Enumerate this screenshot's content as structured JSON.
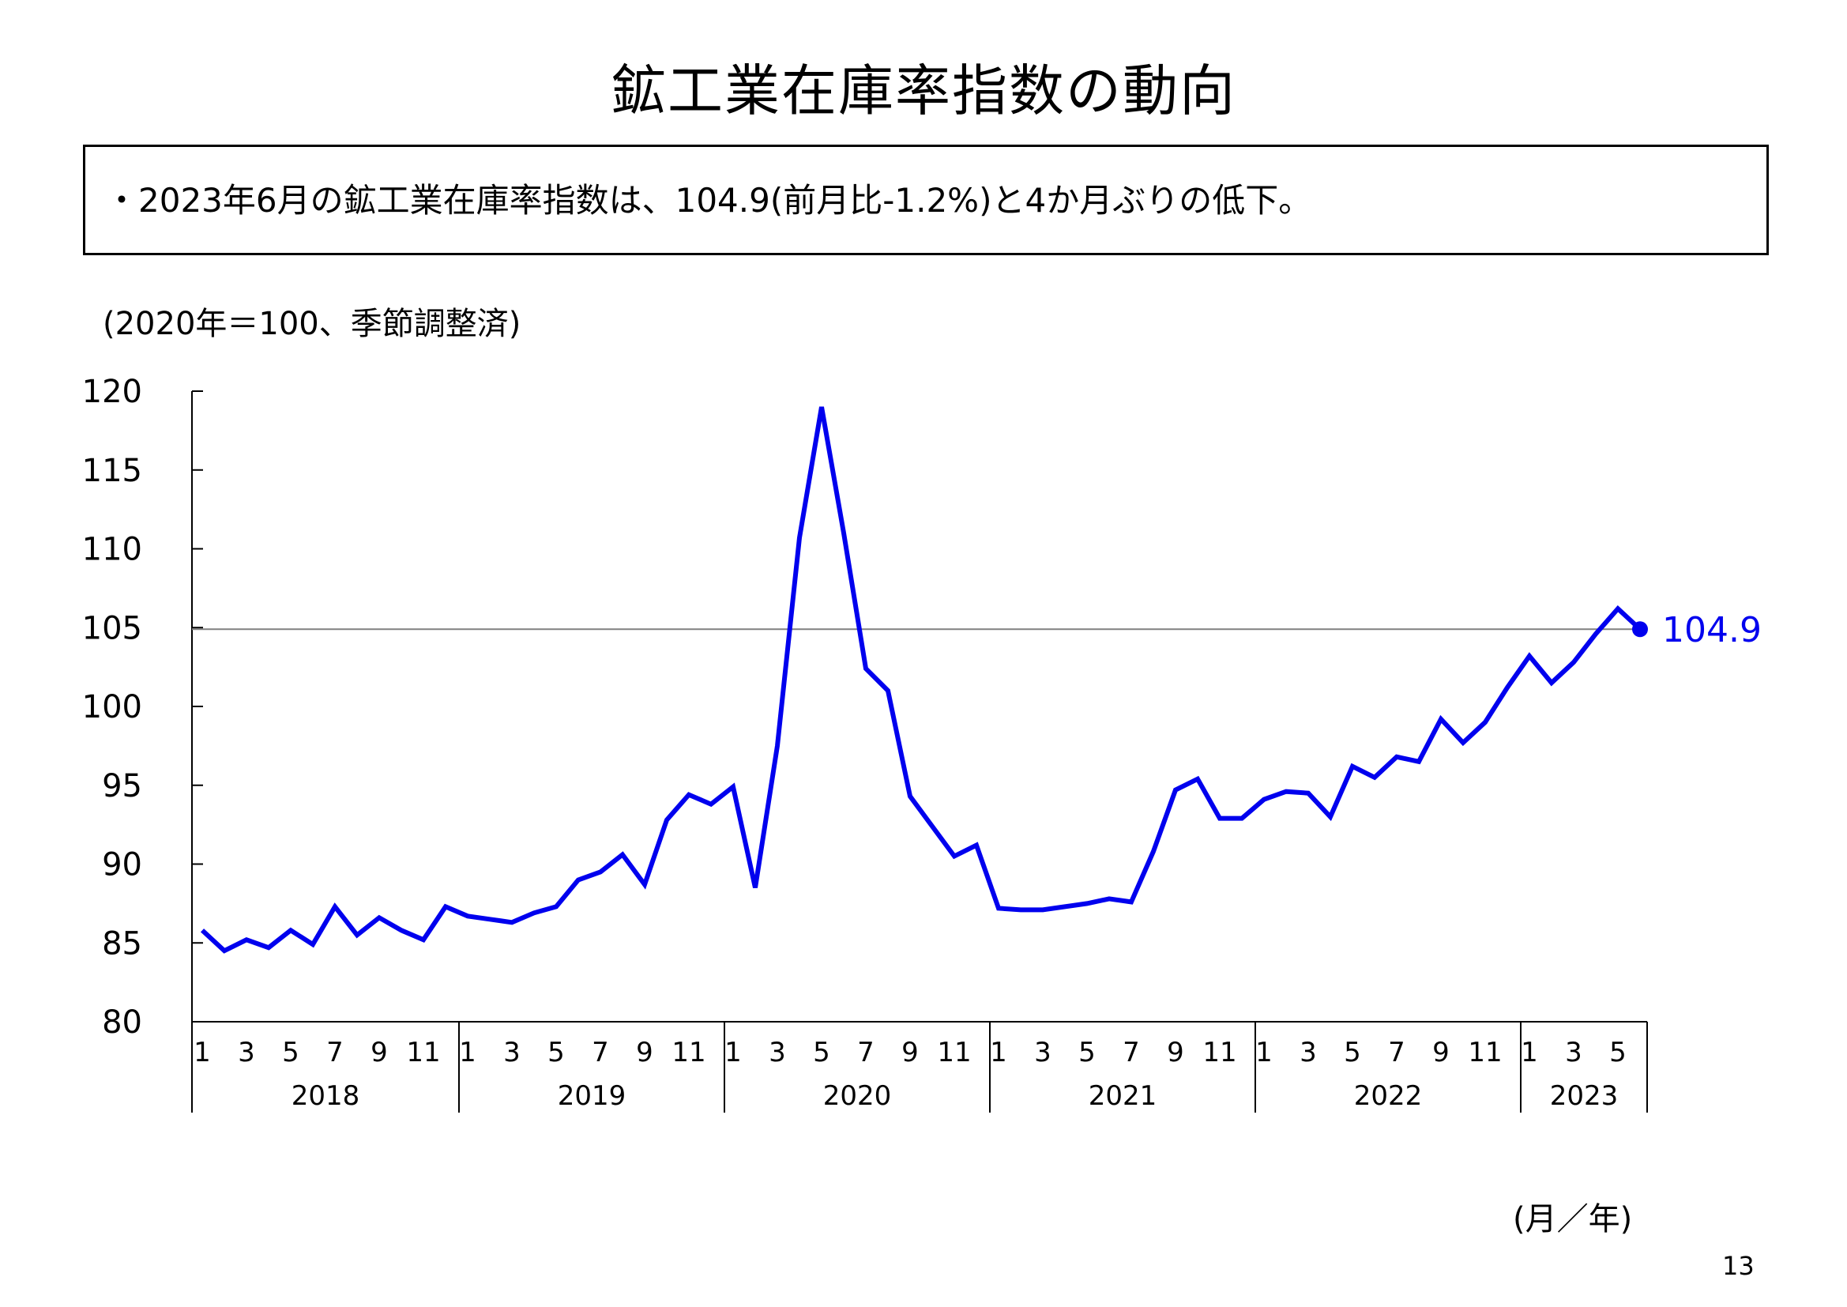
{
  "title": "鉱工業在庫率指数の動向",
  "summary": "・2023年6月の鉱工業在庫率指数は、104.9(前月比-1.2%)と4か月ぶりの低下。",
  "unit_label": "(2020年＝100、季節調整済)",
  "xaxis_unit": "(月／年)",
  "page_number": "13",
  "colors": {
    "series": "#0000ee",
    "reference_line": "#808080",
    "axis": "#000000"
  },
  "chart_data": {
    "type": "line",
    "title": "",
    "xlabel": "(月／年)",
    "ylabel": "(2020年＝100、季節調整済)",
    "ylim": [
      80,
      120
    ],
    "yticks": [
      80,
      85,
      90,
      95,
      100,
      105,
      110,
      115,
      120
    ],
    "grid": false,
    "years": [
      {
        "label": "2018",
        "months": 12
      },
      {
        "label": "2019",
        "months": 12
      },
      {
        "label": "2020",
        "months": 12
      },
      {
        "label": "2021",
        "months": 12
      },
      {
        "label": "2022",
        "months": 12
      },
      {
        "label": "2023",
        "months": 6
      }
    ],
    "month_tick_labels": [
      "1",
      "3",
      "5",
      "7",
      "9",
      "11"
    ],
    "reference_line": 104.9,
    "series": [
      {
        "values": [
          85.8,
          84.5,
          85.2,
          84.7,
          85.8,
          84.9,
          87.3,
          85.5,
          86.6,
          85.8,
          85.2,
          87.3,
          86.7,
          86.5,
          86.3,
          86.9,
          87.3,
          89.0,
          89.5,
          90.6,
          88.7,
          92.8,
          94.4,
          93.8,
          94.9,
          88.5,
          97.5,
          110.7,
          119.0,
          111.0,
          102.4,
          101.0,
          94.3,
          92.4,
          90.5,
          91.2,
          87.2,
          87.1,
          87.1,
          87.3,
          87.5,
          87.8,
          87.6,
          90.8,
          94.7,
          95.4,
          92.9,
          92.9,
          94.1,
          94.6,
          94.5,
          93.0,
          96.2,
          95.5,
          96.8,
          96.5,
          99.2,
          97.7,
          99.0,
          101.2,
          103.2,
          101.5,
          102.8,
          104.6,
          106.2,
          104.9
        ]
      }
    ],
    "last_point_label": "104.9"
  }
}
